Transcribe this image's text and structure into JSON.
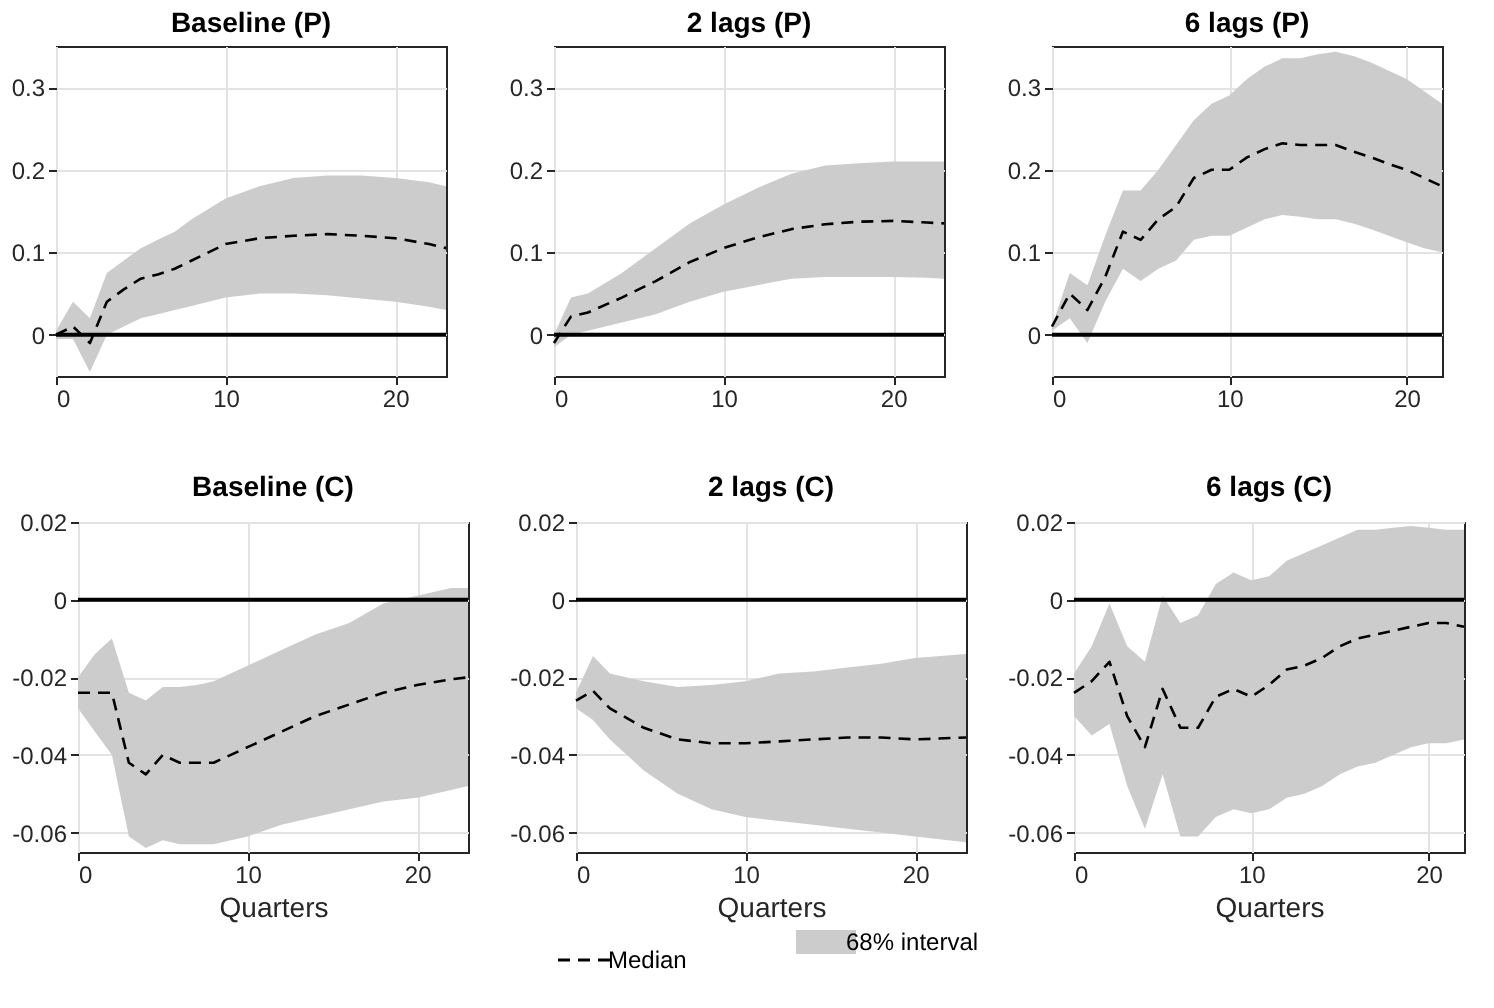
{
  "chart_data": [
    {
      "type": "line",
      "title": "Baseline (P)",
      "xlim": [
        0,
        23
      ],
      "xticks": [
        0,
        10,
        20
      ],
      "ylim": [
        -0.05,
        0.35
      ],
      "yticks": [
        0,
        0.1,
        0.2,
        0.3
      ],
      "grid": true,
      "line_style": "dashed",
      "ref_lines": [
        {
          "axis": "y",
          "value": 0,
          "color": "#000000"
        }
      ],
      "series": [
        {
          "color": "#000000",
          "x": [
            0,
            1,
            2,
            3,
            4,
            5,
            6,
            7,
            8,
            10,
            12,
            14,
            16,
            18,
            20,
            22,
            23
          ],
          "values": [
            0,
            0.01,
            -0.01,
            0.04,
            0.055,
            0.068,
            0.073,
            0.08,
            0.09,
            0.11,
            0.117,
            0.12,
            0.122,
            0.12,
            0.117,
            0.11,
            0.105
          ],
          "lower": [
            -0.005,
            -0.005,
            -0.045,
            0,
            0.01,
            0.02,
            0.025,
            0.03,
            0.035,
            0.045,
            0.05,
            0.05,
            0.048,
            0.044,
            0.04,
            0.034,
            0.03
          ],
          "upper": [
            0.005,
            0.04,
            0.02,
            0.075,
            0.09,
            0.105,
            0.115,
            0.125,
            0.14,
            0.165,
            0.18,
            0.19,
            0.193,
            0.193,
            0.19,
            0.185,
            0.18
          ]
        }
      ]
    },
    {
      "type": "line",
      "title": "2 lags (P)",
      "xlim": [
        0,
        23
      ],
      "xticks": [
        0,
        10,
        20
      ],
      "ylim": [
        -0.05,
        0.35
      ],
      "yticks": [
        0,
        0.1,
        0.2,
        0.3
      ],
      "grid": true,
      "line_style": "dashed",
      "ref_lines": [
        {
          "axis": "y",
          "value": 0,
          "color": "#000000"
        }
      ],
      "series": [
        {
          "color": "#000000",
          "x": [
            0,
            1,
            2,
            4,
            6,
            8,
            10,
            12,
            14,
            16,
            18,
            20,
            22,
            23
          ],
          "values": [
            -0.01,
            0.022,
            0.027,
            0.045,
            0.065,
            0.088,
            0.105,
            0.118,
            0.128,
            0.134,
            0.137,
            0.138,
            0.136,
            0.135
          ],
          "lower": [
            -0.015,
            0,
            0.005,
            0.015,
            0.025,
            0.04,
            0.052,
            0.06,
            0.068,
            0.07,
            0.07,
            0.07,
            0.069,
            0.068
          ],
          "upper": [
            0,
            0.045,
            0.05,
            0.075,
            0.105,
            0.135,
            0.158,
            0.178,
            0.195,
            0.205,
            0.208,
            0.21,
            0.21,
            0.21
          ]
        }
      ]
    },
    {
      "type": "line",
      "title": "6 lags (P)",
      "xlim": [
        0,
        22
      ],
      "xticks": [
        0,
        10,
        20
      ],
      "ylim": [
        -0.05,
        0.35
      ],
      "yticks": [
        0,
        0.1,
        0.2,
        0.3
      ],
      "grid": true,
      "line_style": "dashed",
      "ref_lines": [
        {
          "axis": "y",
          "value": 0,
          "color": "#000000"
        }
      ],
      "series": [
        {
          "color": "#000000",
          "x": [
            0,
            1,
            2,
            3,
            4,
            5,
            6,
            7,
            8,
            9,
            10,
            11,
            12,
            13,
            14,
            15,
            16,
            17,
            18,
            19,
            20,
            21,
            22
          ],
          "values": [
            0.01,
            0.05,
            0.03,
            0.07,
            0.125,
            0.115,
            0.14,
            0.155,
            0.19,
            0.2,
            0.2,
            0.215,
            0.225,
            0.232,
            0.23,
            0.23,
            0.23,
            0.222,
            0.215,
            0.207,
            0.2,
            0.19,
            0.18
          ],
          "lower": [
            0.005,
            0.02,
            -0.01,
            0.04,
            0.08,
            0.065,
            0.08,
            0.09,
            0.115,
            0.12,
            0.12,
            0.13,
            0.14,
            0.145,
            0.143,
            0.14,
            0.14,
            0.135,
            0.128,
            0.12,
            0.112,
            0.105,
            0.1
          ],
          "upper": [
            0.01,
            0.075,
            0.06,
            0.12,
            0.175,
            0.175,
            0.2,
            0.23,
            0.26,
            0.28,
            0.29,
            0.31,
            0.325,
            0.335,
            0.335,
            0.34,
            0.343,
            0.338,
            0.33,
            0.32,
            0.31,
            0.295,
            0.28
          ]
        }
      ]
    },
    {
      "type": "line",
      "title": "Baseline (C)",
      "xlabel": "Quarters",
      "xlim": [
        0,
        23
      ],
      "xticks": [
        0,
        10,
        20
      ],
      "ylim": [
        -0.065,
        0.02
      ],
      "yticks": [
        -0.06,
        -0.04,
        -0.02,
        0,
        0.02
      ],
      "grid": true,
      "line_style": "dashed",
      "ref_lines": [
        {
          "axis": "y",
          "value": 0,
          "color": "#000000"
        }
      ],
      "series": [
        {
          "color": "#000000",
          "x": [
            0,
            1,
            2,
            3,
            4,
            5,
            6,
            7,
            8,
            10,
            12,
            14,
            16,
            18,
            20,
            22,
            23
          ],
          "values": [
            -0.024,
            -0.024,
            -0.024,
            -0.042,
            -0.045,
            -0.04,
            -0.042,
            -0.042,
            -0.042,
            -0.038,
            -0.034,
            -0.03,
            -0.027,
            -0.024,
            -0.022,
            -0.0205,
            -0.02
          ],
          "lower": [
            -0.028,
            -0.034,
            -0.04,
            -0.061,
            -0.064,
            -0.062,
            -0.063,
            -0.063,
            -0.063,
            -0.061,
            -0.058,
            -0.056,
            -0.054,
            -0.052,
            -0.051,
            -0.049,
            -0.048
          ],
          "upper": [
            -0.02,
            -0.014,
            -0.01,
            -0.024,
            -0.026,
            -0.0225,
            -0.0225,
            -0.022,
            -0.021,
            -0.017,
            -0.013,
            -0.009,
            -0.006,
            -0.001,
            0.001,
            0.003,
            0.003
          ]
        }
      ]
    },
    {
      "type": "line",
      "title": "2 lags (C)",
      "xlabel": "Quarters",
      "xlim": [
        0,
        23
      ],
      "xticks": [
        0,
        10,
        20
      ],
      "ylim": [
        -0.065,
        0.02
      ],
      "yticks": [
        -0.06,
        -0.04,
        -0.02,
        0,
        0.02
      ],
      "grid": true,
      "line_style": "dashed",
      "legend": "bottom",
      "annotations": [
        "68% interval"
      ],
      "ref_lines": [
        {
          "axis": "y",
          "value": 0,
          "color": "#000000"
        }
      ],
      "series": [
        {
          "name": "Median",
          "color": "#000000",
          "x": [
            0,
            1,
            2,
            4,
            6,
            8,
            10,
            12,
            14,
            16,
            18,
            20,
            23
          ],
          "values": [
            -0.026,
            -0.0235,
            -0.028,
            -0.033,
            -0.036,
            -0.037,
            -0.037,
            -0.0365,
            -0.036,
            -0.0355,
            -0.0355,
            -0.036,
            -0.0355
          ],
          "lower": [
            -0.028,
            -0.031,
            -0.036,
            -0.044,
            -0.05,
            -0.054,
            -0.056,
            -0.057,
            -0.058,
            -0.059,
            -0.06,
            -0.061,
            -0.0625
          ],
          "upper": [
            -0.024,
            -0.0145,
            -0.019,
            -0.021,
            -0.0225,
            -0.022,
            -0.021,
            -0.019,
            -0.0185,
            -0.0175,
            -0.0165,
            -0.015,
            -0.014
          ]
        }
      ]
    },
    {
      "type": "line",
      "title": "6 lags (C)",
      "xlabel": "Quarters",
      "xlim": [
        0,
        22
      ],
      "xticks": [
        0,
        10,
        20
      ],
      "ylim": [
        -0.065,
        0.02
      ],
      "yticks": [
        -0.06,
        -0.04,
        -0.02,
        0,
        0.02
      ],
      "grid": true,
      "line_style": "dashed",
      "ref_lines": [
        {
          "axis": "y",
          "value": 0,
          "color": "#000000"
        }
      ],
      "series": [
        {
          "color": "#000000",
          "x": [
            0,
            1,
            2,
            3,
            4,
            5,
            6,
            7,
            8,
            9,
            10,
            11,
            12,
            13,
            14,
            15,
            16,
            17,
            18,
            19,
            20,
            21,
            22
          ],
          "values": [
            -0.024,
            -0.021,
            -0.016,
            -0.03,
            -0.038,
            -0.023,
            -0.033,
            -0.033,
            -0.025,
            -0.023,
            -0.025,
            -0.022,
            -0.018,
            -0.017,
            -0.015,
            -0.012,
            -0.01,
            -0.009,
            -0.008,
            -0.007,
            -0.006,
            -0.006,
            -0.007
          ],
          "lower": [
            -0.03,
            -0.035,
            -0.032,
            -0.048,
            -0.059,
            -0.045,
            -0.061,
            -0.061,
            -0.056,
            -0.054,
            -0.055,
            -0.054,
            -0.051,
            -0.05,
            -0.048,
            -0.045,
            -0.043,
            -0.042,
            -0.04,
            -0.038,
            -0.037,
            -0.037,
            -0.036
          ],
          "upper": [
            -0.019,
            -0.012,
            -0.001,
            -0.012,
            -0.016,
            0.001,
            -0.006,
            -0.004,
            0.004,
            0.007,
            0.005,
            0.006,
            0.01,
            0.012,
            0.014,
            0.016,
            0.018,
            0.018,
            0.0185,
            0.019,
            0.0185,
            0.018,
            0.018
          ]
        }
      ]
    }
  ]
}
